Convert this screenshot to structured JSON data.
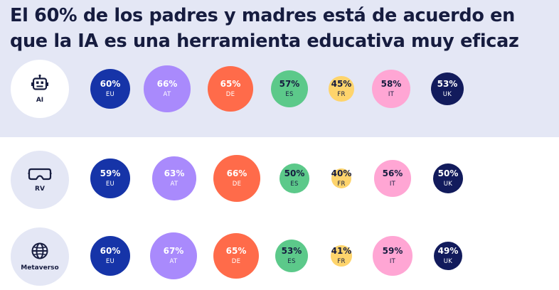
{
  "title": "El 60% de los padres y madres está de acuerdo en que la IA es una herramienta educativa muy eficaz",
  "colors": {
    "EU": "#1634a8",
    "AT": "#a98afc",
    "DE": "#ff6b4a",
    "ES": "#5cc98a",
    "FR": "#fed46c",
    "IT": "#ffa6d4",
    "UK": "#121b5c"
  },
  "chart_data": {
    "type": "bubble",
    "value_unit": "%",
    "countries": [
      "EU",
      "AT",
      "DE",
      "ES",
      "FR",
      "IT",
      "UK"
    ],
    "rows": [
      {
        "label": "AI",
        "icon": "robot-icon",
        "values": [
          60,
          66,
          65,
          57,
          45,
          58,
          53
        ]
      },
      {
        "label": "RV",
        "icon": "vr-headset-icon",
        "values": [
          59,
          63,
          66,
          50,
          40,
          56,
          50
        ]
      },
      {
        "label": "Metaverso",
        "icon": "globe-icon",
        "values": [
          60,
          67,
          65,
          53,
          41,
          59,
          49
        ]
      }
    ]
  }
}
